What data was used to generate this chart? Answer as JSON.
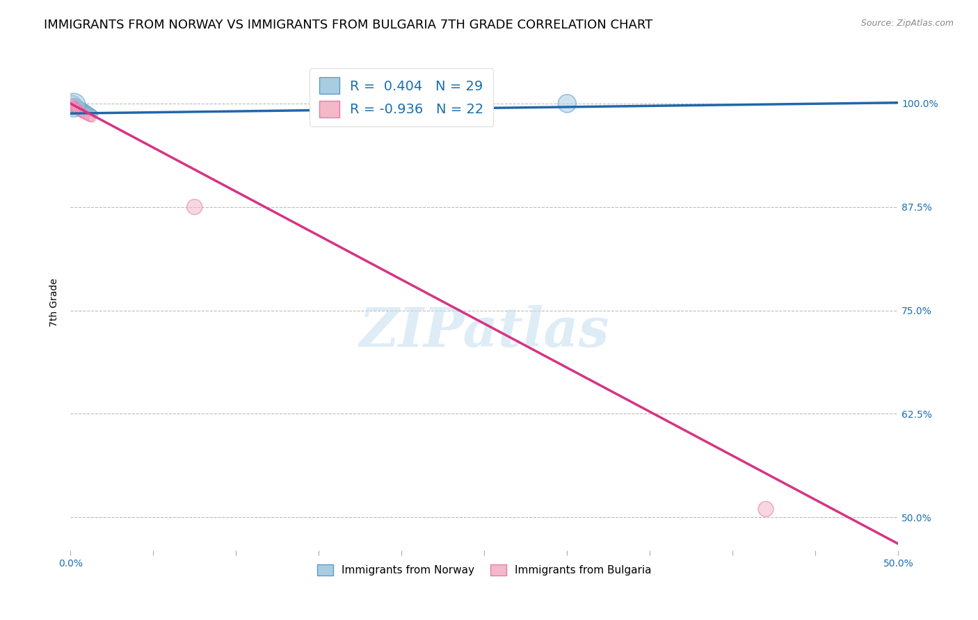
{
  "title": "IMMIGRANTS FROM NORWAY VS IMMIGRANTS FROM BULGARIA 7TH GRADE CORRELATION CHART",
  "source": "Source: ZipAtlas.com",
  "ylabel": "7th Grade",
  "watermark": "ZIPatlas",
  "xlim": [
    0.0,
    0.5
  ],
  "ylim": [
    0.46,
    1.06
  ],
  "x_ticks": [
    0.0,
    0.05,
    0.1,
    0.15,
    0.2,
    0.25,
    0.3,
    0.35,
    0.4,
    0.45,
    0.5
  ],
  "x_tick_labels": [
    "0.0%",
    "",
    "",
    "",
    "",
    "",
    "",
    "",
    "",
    "",
    "50.0%"
  ],
  "y_ticks_right": [
    1.0,
    0.875,
    0.75,
    0.625,
    0.5
  ],
  "y_tick_labels_right": [
    "100.0%",
    "87.5%",
    "75.0%",
    "62.5%",
    "50.0%"
  ],
  "norway_color": "#a8cce0",
  "norway_edge_color": "#5b9dc9",
  "bulgaria_color": "#f4b8c8",
  "bulgaria_edge_color": "#e87aaa",
  "norway_line_color": "#2166ac",
  "bulgaria_line_color": "#d63384",
  "norway_R": 0.404,
  "norway_N": 29,
  "bulgaria_R": -0.936,
  "bulgaria_N": 22,
  "legend_R_color": "#1a6faf",
  "norway_scatter_x": [
    0.001,
    0.002,
    0.002,
    0.003,
    0.003,
    0.003,
    0.004,
    0.004,
    0.004,
    0.005,
    0.005,
    0.005,
    0.006,
    0.006,
    0.006,
    0.007,
    0.007,
    0.007,
    0.008,
    0.008,
    0.009,
    0.009,
    0.01,
    0.011,
    0.012,
    0.013,
    0.014,
    0.3,
    0.002
  ],
  "norway_scatter_y": [
    0.998,
    0.997,
    0.996,
    0.998,
    0.996,
    0.995,
    0.997,
    0.995,
    0.994,
    0.996,
    0.994,
    0.993,
    0.995,
    0.993,
    0.992,
    0.994,
    0.992,
    0.991,
    0.993,
    0.991,
    0.992,
    0.99,
    0.991,
    0.99,
    0.989,
    0.988,
    0.987,
    1.0,
    0.998
  ],
  "norway_scatter_sizes": [
    400,
    200,
    150,
    200,
    150,
    120,
    180,
    150,
    130,
    160,
    140,
    120,
    150,
    130,
    110,
    140,
    120,
    100,
    130,
    110,
    120,
    100,
    110,
    100,
    90,
    80,
    70,
    350,
    600
  ],
  "bulgaria_scatter_x": [
    0.001,
    0.002,
    0.002,
    0.003,
    0.003,
    0.004,
    0.004,
    0.005,
    0.005,
    0.006,
    0.006,
    0.007,
    0.007,
    0.008,
    0.008,
    0.009,
    0.01,
    0.011,
    0.012,
    0.013,
    0.075,
    0.42
  ],
  "bulgaria_scatter_y": [
    0.999,
    0.997,
    0.996,
    0.995,
    0.994,
    0.994,
    0.993,
    0.992,
    0.991,
    0.991,
    0.99,
    0.989,
    0.988,
    0.988,
    0.987,
    0.986,
    0.985,
    0.984,
    0.983,
    0.982,
    0.875,
    0.51
  ],
  "bulgaria_scatter_sizes": [
    120,
    100,
    90,
    110,
    90,
    100,
    90,
    80,
    100,
    90,
    80,
    90,
    80,
    80,
    70,
    80,
    70,
    80,
    70,
    60,
    250,
    250
  ],
  "norway_trendline_x": [
    0.0,
    0.5
  ],
  "norway_trendline_y": [
    0.988,
    1.001
  ],
  "bulgaria_trendline_x": [
    0.0,
    0.5
  ],
  "bulgaria_trendline_y": [
    1.0,
    0.468
  ],
  "background_color": "#ffffff",
  "grid_color": "#bbbbbb",
  "title_fontsize": 13,
  "axis_label_fontsize": 10,
  "tick_fontsize": 10,
  "legend_fontsize": 14
}
